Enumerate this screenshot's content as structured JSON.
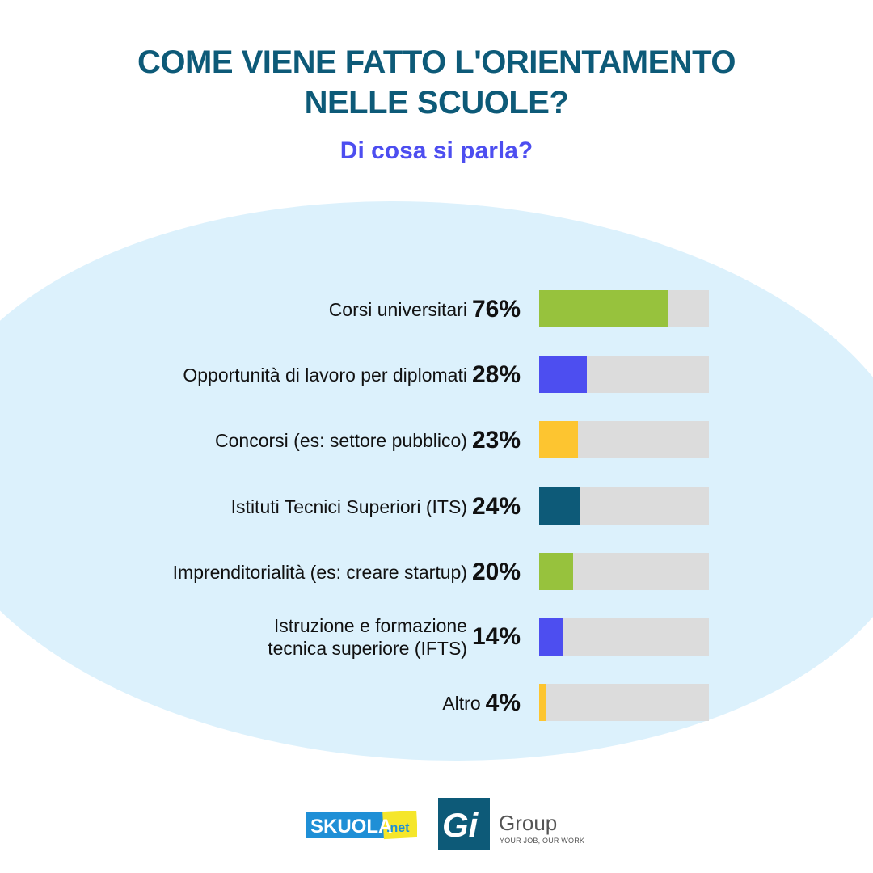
{
  "title_line1": "COME VIENE FATTO L'ORIENTAMENTO",
  "title_line2": "NELLE SCUOLE?",
  "subtitle": "Di cosa si parla?",
  "colors": {
    "title": "#0d5a78",
    "subtitle": "#4d4ef0",
    "track": "#dcdcdc",
    "background_ellipse": "#dcf1fc"
  },
  "chart_data": {
    "type": "bar",
    "orientation": "horizontal",
    "categories": [
      "Corsi universitari",
      "Opportunità di lavoro per diplomati",
      "Concorsi (es: settore pubblico)",
      "Istituti Tecnici Superiori (ITS)",
      "Imprenditorialità (es: creare startup)",
      "Istruzione e formazione tecnica superiore (IFTS)",
      "Altro"
    ],
    "label_lines": [
      [
        "Corsi universitari"
      ],
      [
        "Opportunità di lavoro per diplomati"
      ],
      [
        "Concorsi (es: settore pubblico)"
      ],
      [
        "Istituti Tecnici Superiori (ITS)"
      ],
      [
        "Imprenditorialità (es: creare startup)"
      ],
      [
        "Istruzione e formazione",
        "tecnica superiore (IFTS)"
      ],
      [
        "Altro"
      ]
    ],
    "values": [
      76,
      28,
      23,
      24,
      20,
      14,
      4
    ],
    "value_labels": [
      "76%",
      "28%",
      "23%",
      "24%",
      "20%",
      "14%",
      "4%"
    ],
    "bar_colors": [
      "#97c23d",
      "#4d4ef0",
      "#fdc530",
      "#0d5a78",
      "#97c23d",
      "#4d4ef0",
      "#fdc530"
    ],
    "xlim": [
      0,
      100
    ],
    "unit": "%"
  },
  "logos": {
    "skuola_text": "SKUOLA",
    "skuola_suffix": ".net",
    "gi_mark": "Gi",
    "gi_group": "Group",
    "gi_tagline": "YOUR JOB, OUR WORK"
  }
}
